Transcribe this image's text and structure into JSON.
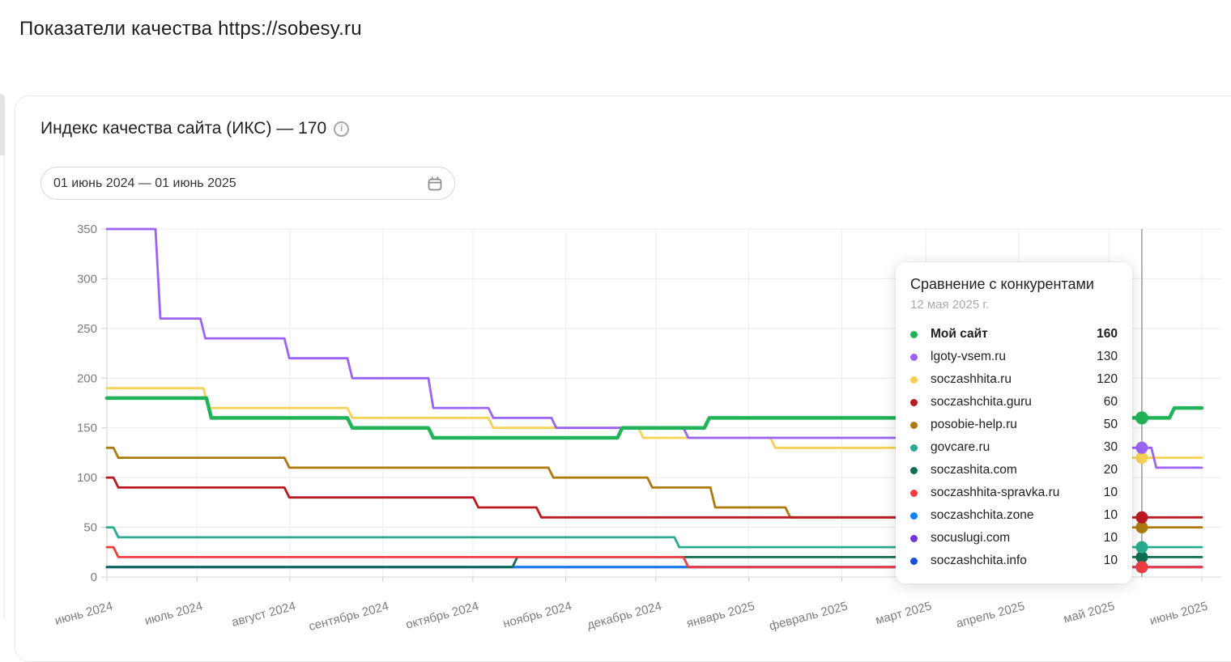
{
  "page": {
    "title": "Показатели качества https://sobesy.ru"
  },
  "card": {
    "title": "Индекс качества сайта (ИКС) — 170",
    "iks_value": "170",
    "date_range": {
      "value": "01 июнь 2024 — 01 июнь 2025"
    }
  },
  "tooltip": {
    "title": "Сравнение с конкурентами",
    "date": "12 мая 2025 г."
  },
  "chart_data": {
    "type": "line",
    "title": "Индекс качества сайта (ИКС)",
    "xlabel": "",
    "ylabel": "",
    "grid": true,
    "x_axis": {
      "labels": [
        "июнь 2024",
        "июль 2024",
        "август 2024",
        "сентябрь 2024",
        "октябрь 2024",
        "ноябрь 2024",
        "декабрь 2024",
        "январь 2025",
        "февраль 2025",
        "март 2025",
        "апрель 2025",
        "май 2025",
        "июнь 2025"
      ],
      "month_day_offsets": [
        0,
        30,
        61,
        92,
        122,
        153,
        183,
        214,
        245,
        273,
        304,
        334,
        365
      ],
      "total_days": 365
    },
    "y_axis": {
      "ticks": [
        0,
        50,
        100,
        150,
        200,
        250,
        300,
        350
      ],
      "range": [
        0,
        350
      ]
    },
    "hover": {
      "day": 345,
      "date_label": "12 мая 2025 г."
    },
    "draw_order": [
      10,
      9,
      8,
      6,
      5,
      4,
      3,
      7,
      2,
      1,
      0
    ],
    "series": [
      {
        "name": "Мой сайт",
        "slug": "my-site",
        "color": "#22b358",
        "width": 4.5,
        "emphasis": true,
        "hover_value": 160,
        "points": [
          [
            0,
            180
          ],
          [
            34,
            160
          ],
          [
            81,
            150
          ],
          [
            108,
            140
          ],
          [
            171,
            150
          ],
          [
            200,
            160
          ],
          [
            355,
            170
          ]
        ]
      },
      {
        "name": "lgoty-vsem.ru",
        "slug": "lgoty-vsem-ru",
        "color": "#9b63f3",
        "width": 2.8,
        "emphasis": false,
        "hover_value": 130,
        "points": [
          [
            0,
            350
          ],
          [
            17,
            260
          ],
          [
            32,
            240
          ],
          [
            60,
            220
          ],
          [
            81,
            200
          ],
          [
            108,
            170
          ],
          [
            128,
            160
          ],
          [
            149,
            150
          ],
          [
            193,
            140
          ],
          [
            270,
            130
          ],
          [
            349,
            110
          ]
        ]
      },
      {
        "name": "soczashhita.ru",
        "slug": "soczashhita-ru",
        "color": "#f7d154",
        "width": 2.8,
        "emphasis": false,
        "hover_value": 120,
        "points": [
          [
            0,
            190
          ],
          [
            33,
            170
          ],
          [
            81,
            160
          ],
          [
            128,
            150
          ],
          [
            178,
            140
          ],
          [
            222,
            130
          ],
          [
            283,
            120
          ]
        ]
      },
      {
        "name": "soczashchita.guru",
        "slug": "soczashchita-guru",
        "color": "#ba1a22",
        "width": 2.8,
        "emphasis": false,
        "hover_value": 60,
        "points": [
          [
            0,
            100
          ],
          [
            3,
            90
          ],
          [
            60,
            80
          ],
          [
            123,
            70
          ],
          [
            144,
            60
          ]
        ]
      },
      {
        "name": "posobie-help.ru",
        "slug": "posobie-help-ru",
        "color": "#ad7a0d",
        "width": 2.8,
        "emphasis": false,
        "hover_value": 50,
        "points": [
          [
            0,
            130
          ],
          [
            3,
            120
          ],
          [
            60,
            110
          ],
          [
            148,
            100
          ],
          [
            181,
            90
          ],
          [
            202,
            70
          ],
          [
            227,
            60
          ],
          [
            295,
            50
          ]
        ]
      },
      {
        "name": "govcare.ru",
        "slug": "govcare-ru",
        "color": "#2aab8f",
        "width": 2.8,
        "emphasis": false,
        "hover_value": 30,
        "points": [
          [
            0,
            50
          ],
          [
            3,
            40
          ],
          [
            190,
            30
          ]
        ]
      },
      {
        "name": "soczashita.com",
        "slug": "soczashita-com",
        "color": "#0e6e51",
        "width": 2.8,
        "emphasis": false,
        "hover_value": 20,
        "points": [
          [
            0,
            10
          ],
          [
            136,
            20
          ]
        ]
      },
      {
        "name": "soczashhita-spravka.ru",
        "slug": "soczashhita-spravka-ru",
        "color": "#f23c40",
        "width": 2.8,
        "emphasis": false,
        "hover_value": 10,
        "points": [
          [
            0,
            30
          ],
          [
            3,
            20
          ],
          [
            193,
            10
          ]
        ]
      },
      {
        "name": "soczashchita.zone",
        "slug": "soczashchita-zone",
        "color": "#1480f5",
        "width": 2.8,
        "emphasis": false,
        "hover_value": 10,
        "points": [
          [
            0,
            10
          ]
        ]
      },
      {
        "name": "socuslugi.com",
        "slug": "socuslugi-com",
        "color": "#7133d8",
        "width": 2.8,
        "emphasis": false,
        "hover_value": 10,
        "points": [
          [
            0,
            10
          ]
        ]
      },
      {
        "name": "soczashchita.info",
        "slug": "soczashchita-info",
        "color": "#1b50d4",
        "width": 2.8,
        "emphasis": false,
        "hover_value": 10,
        "points": [
          [
            0,
            10
          ]
        ]
      }
    ]
  }
}
